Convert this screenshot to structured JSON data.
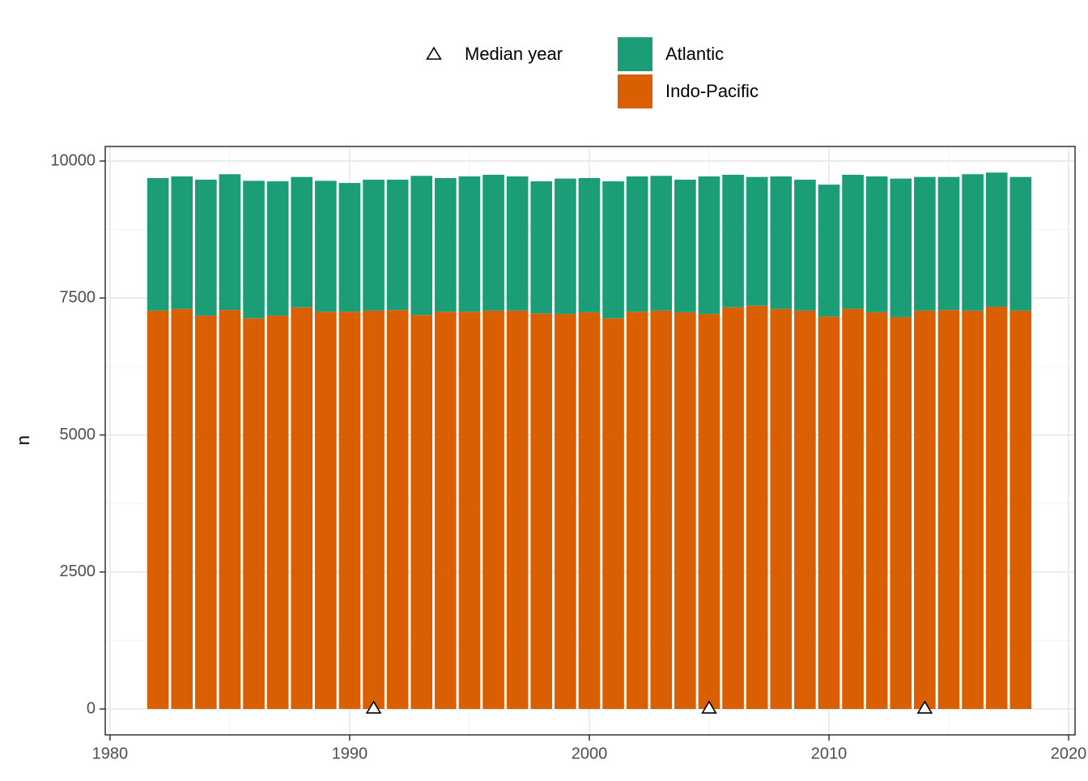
{
  "chart_data": {
    "type": "bar",
    "y_label": "n",
    "x": [
      1982,
      1983,
      1984,
      1985,
      1986,
      1987,
      1988,
      1989,
      1990,
      1991,
      1992,
      1993,
      1994,
      1995,
      1996,
      1997,
      1998,
      1999,
      2000,
      2001,
      2002,
      2003,
      2004,
      2005,
      2006,
      2007,
      2008,
      2009,
      2010,
      2011,
      2012,
      2013,
      2014,
      2015,
      2016,
      2017,
      2018
    ],
    "series": [
      {
        "name": "Atlantic",
        "color": "#1B9E77",
        "values": [
          2420,
          2420,
          2480,
          2480,
          2510,
          2450,
          2380,
          2390,
          2350,
          2390,
          2380,
          2540,
          2440,
          2470,
          2480,
          2450,
          2410,
          2470,
          2450,
          2500,
          2470,
          2460,
          2420,
          2510,
          2420,
          2350,
          2420,
          2390,
          2410,
          2450,
          2480,
          2530,
          2440,
          2430,
          2490,
          2450,
          2440
        ]
      },
      {
        "name": "Indo-Pacific",
        "color": "#D95F02",
        "values": [
          7270,
          7300,
          7180,
          7280,
          7130,
          7180,
          7330,
          7250,
          7250,
          7270,
          7280,
          7190,
          7250,
          7250,
          7270,
          7270,
          7220,
          7210,
          7240,
          7130,
          7250,
          7270,
          7240,
          7210,
          7330,
          7360,
          7300,
          7270,
          7160,
          7300,
          7240,
          7150,
          7270,
          7280,
          7270,
          7340,
          7270
        ]
      }
    ],
    "markers": {
      "name": "Median year",
      "x": [
        1991,
        2005,
        2014
      ],
      "y": [
        0,
        0,
        0
      ]
    },
    "xlim": [
      1979.8,
      2020.27
    ],
    "xticks": [
      1980,
      1990,
      2000,
      2010,
      2020
    ],
    "ylim": [
      -473,
      10266
    ],
    "yticks": [
      0,
      2500,
      5000,
      7500,
      10000
    ],
    "grid": true
  }
}
